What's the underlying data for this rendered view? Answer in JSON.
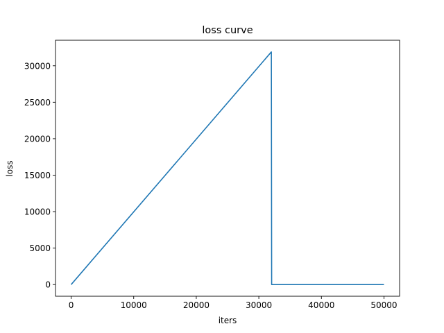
{
  "chart_data": {
    "type": "line",
    "title": "loss curve",
    "xlabel": "iters",
    "ylabel": "loss",
    "xlim": [
      -2500,
      52500
    ],
    "ylim": [
      -1600,
      33500
    ],
    "xticks": [
      0,
      10000,
      20000,
      30000,
      40000,
      50000
    ],
    "xtick_labels": [
      "0",
      "10000",
      "20000",
      "30000",
      "40000",
      "50000"
    ],
    "yticks": [
      0,
      5000,
      10000,
      15000,
      20000,
      25000,
      30000
    ],
    "ytick_labels": [
      "0",
      "5000",
      "10000",
      "15000",
      "20000",
      "25000",
      "30000"
    ],
    "grid": false,
    "legend": "none",
    "series": [
      {
        "color": "#1f77b4",
        "x": [
          0,
          32000,
          32050,
          50000
        ],
        "y": [
          0,
          31900,
          0,
          0
        ]
      }
    ]
  }
}
